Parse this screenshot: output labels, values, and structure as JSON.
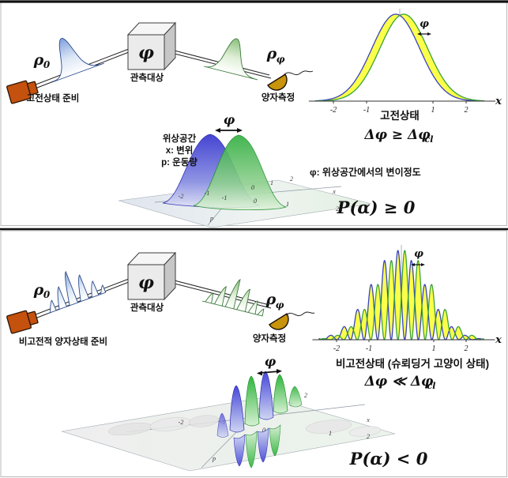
{
  "figure": {
    "top": {
      "rho_in": {
        "sym": "ρ",
        "sub": "0"
      },
      "rho_out": {
        "sym": "ρ",
        "sub": "φ"
      },
      "source_label": "고전상태 준비",
      "cube": {
        "symbol": "φ",
        "label": "관측대상"
      },
      "detector_label": "양자측정",
      "plot": {
        "phi": "φ",
        "xlabel": "x",
        "title": "고전상태"
      },
      "ineq": {
        "main": "Δφ ≥ Δφ",
        "sub": "cl"
      },
      "phase_space": {
        "title": "위상공간",
        "x_def": "x: 변위",
        "p_def": "p: 운동량"
      },
      "wigner": {
        "phi": "φ",
        "p": "p",
        "x": "x",
        "tick_right": "2",
        "ticks_back": [
          "-2",
          "-1",
          "0",
          "1",
          "2"
        ],
        "ticks_near": [
          "-1",
          "0",
          "1"
        ]
      },
      "phi_note": "φ: 위상공간에서의 변이정도",
      "p_alpha": "P(α) ≥ 0"
    },
    "bottom": {
      "rho_in": {
        "sym": "ρ",
        "sub": "0"
      },
      "rho_out": {
        "sym": "ρ",
        "sub": "φ"
      },
      "source_label": "비고전적 양자상태 준비",
      "cube": {
        "symbol": "φ",
        "label": "관측대상"
      },
      "detector_label": "양자측정",
      "plot": {
        "phi": "φ",
        "xlabel": "x",
        "title": "비고전상태 (슈뢰딩거 고양이 상태)"
      },
      "ineq": {
        "main": "Δφ ≪ Δφ",
        "sub": "cl"
      },
      "wigner": {
        "phi": "φ",
        "p": "p",
        "x": "x",
        "tick_right": "2",
        "ticks_front": [
          "-2",
          "-1"
        ],
        "ticks_mid": [
          "-1",
          "0",
          "1",
          "2"
        ],
        "ticks_near": [
          "0",
          "1"
        ]
      },
      "p_alpha": "P(α) < 0"
    }
  },
  "chart_data": [
    {
      "type": "line",
      "title": "고전상태",
      "xlabel": "x",
      "x_range": [
        -2.55,
        2.55
      ],
      "ticks": [
        -2,
        -1,
        1,
        2
      ],
      "ylim": [
        0,
        1
      ],
      "annotation": "φ (small displacement between curves)",
      "series": [
        {
          "name": "initial state (blue)",
          "model": "gaussian",
          "mu": -0.12,
          "sigma": 0.72,
          "amp": 1.0
        },
        {
          "name": "phase-shifted state (green)",
          "model": "gaussian",
          "mu": 0.12,
          "sigma": 0.72,
          "amp": 1.0
        }
      ]
    },
    {
      "type": "line",
      "title": "비고전상태 (슈뢰딩거 고양이 상태)",
      "xlabel": "x",
      "x_range": [
        -2.55,
        2.55
      ],
      "ticks": [
        -2,
        -1,
        1,
        2
      ],
      "ylim": [
        0,
        1
      ],
      "annotation": "φ (fringe displacement)",
      "series": [
        {
          "name": "initial cat state (blue)",
          "model": "gaussian-cos2",
          "mu": -0.105,
          "sigma": 0.85,
          "k": 7.5,
          "amp": 1.0
        },
        {
          "name": "phase-shifted cat state (green)",
          "model": "gaussian-cos2",
          "mu": 0.105,
          "sigma": 0.85,
          "k": 7.5,
          "amp": 1.0
        }
      ]
    }
  ]
}
